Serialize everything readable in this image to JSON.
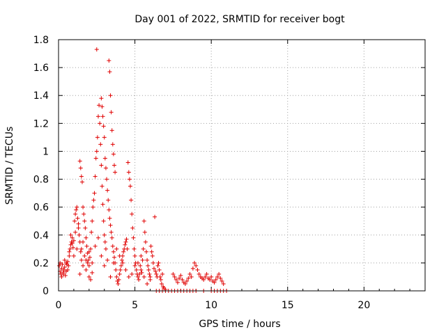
{
  "chart_data": {
    "type": "scatter",
    "title": "Day 001 of 2022, SRMTID for receiver bogt",
    "xlabel": "GPS time / hours",
    "ylabel": "SRMTID / TECUs",
    "xlim": [
      0,
      24
    ],
    "ylim": [
      0,
      1.8
    ],
    "xticks": [
      0,
      5,
      10,
      15,
      20
    ],
    "xtick_labels": [
      "0",
      "5",
      "10",
      "15",
      "20"
    ],
    "yticks": [
      0,
      0.2,
      0.4,
      0.6,
      0.8,
      1.0,
      1.2,
      1.4,
      1.6,
      1.8
    ],
    "ytick_labels": [
      "0",
      "0.2",
      "0.4",
      "0.6",
      "0.8",
      "1",
      "1.2",
      "1.4",
      "1.6",
      "1.8"
    ],
    "grid": true,
    "marker": "+",
    "series_color": "#e00000",
    "series": [
      {
        "name": "SRMTID",
        "points": [
          [
            0.05,
            0.18
          ],
          [
            0.1,
            0.14
          ],
          [
            0.15,
            0.12
          ],
          [
            0.2,
            0.16
          ],
          [
            0.25,
            0.19
          ],
          [
            0.3,
            0.13
          ],
          [
            0.35,
            0.15
          ],
          [
            0.4,
            0.17
          ],
          [
            0.45,
            0.11
          ],
          [
            0.5,
            0.14
          ],
          [
            0.55,
            0.19
          ],
          [
            0.6,
            0.21
          ],
          [
            0.65,
            0.18
          ],
          [
            0.7,
            0.25
          ],
          [
            0.75,
            0.3
          ],
          [
            0.8,
            0.33
          ],
          [
            0.85,
            0.35
          ],
          [
            0.9,
            0.38
          ],
          [
            0.95,
            0.31
          ],
          [
            1.0,
            0.36
          ],
          [
            1.05,
            0.5
          ],
          [
            1.1,
            0.55
          ],
          [
            1.15,
            0.58
          ],
          [
            1.2,
            0.6
          ],
          [
            1.25,
            0.52
          ],
          [
            1.3,
            0.45
          ],
          [
            1.35,
            0.4
          ],
          [
            1.4,
            0.35
          ],
          [
            1.45,
            0.28
          ],
          [
            1.5,
            0.22
          ],
          [
            0.2,
            0.1
          ],
          [
            0.3,
            0.12
          ],
          [
            0.5,
            0.2
          ],
          [
            0.7,
            0.28
          ],
          [
            0.9,
            0.34
          ],
          [
            1.1,
            0.42
          ],
          [
            1.3,
            0.48
          ],
          [
            1.5,
            0.3
          ],
          [
            1.6,
            0.18
          ],
          [
            1.7,
            0.25
          ],
          [
            1.8,
            0.15
          ],
          [
            1.9,
            0.2
          ],
          [
            2.0,
            0.1
          ],
          [
            2.1,
            0.08
          ],
          [
            2.2,
            0.13
          ],
          [
            1.4,
            0.93
          ],
          [
            1.45,
            0.88
          ],
          [
            1.5,
            0.82
          ],
          [
            1.55,
            0.78
          ],
          [
            1.6,
            0.6
          ],
          [
            1.65,
            0.55
          ],
          [
            1.7,
            0.5
          ],
          [
            1.75,
            0.45
          ],
          [
            1.8,
            0.38
          ],
          [
            1.85,
            0.32
          ],
          [
            1.9,
            0.27
          ],
          [
            1.95,
            0.22
          ],
          [
            2.0,
            0.18
          ],
          [
            2.05,
            0.24
          ],
          [
            2.1,
            0.3
          ],
          [
            2.15,
            0.42
          ],
          [
            2.2,
            0.5
          ],
          [
            2.25,
            0.6
          ],
          [
            2.3,
            0.65
          ],
          [
            2.35,
            0.7
          ],
          [
            2.4,
            0.82
          ],
          [
            2.45,
            0.95
          ],
          [
            2.5,
            1.0
          ],
          [
            2.55,
            1.1
          ],
          [
            2.6,
            1.25
          ],
          [
            2.65,
            1.33
          ],
          [
            2.7,
            1.2
          ],
          [
            2.75,
            1.05
          ],
          [
            2.8,
            0.9
          ],
          [
            2.85,
            0.75
          ],
          [
            2.9,
            0.62
          ],
          [
            2.95,
            0.5
          ],
          [
            3.0,
            0.4
          ],
          [
            3.05,
            0.35
          ],
          [
            3.1,
            0.3
          ],
          [
            2.5,
            1.73
          ],
          [
            3.3,
            1.65
          ],
          [
            3.35,
            1.57
          ],
          [
            3.4,
            1.4
          ],
          [
            3.45,
            1.28
          ],
          [
            3.5,
            1.15
          ],
          [
            3.55,
            1.05
          ],
          [
            3.6,
            0.98
          ],
          [
            3.65,
            0.9
          ],
          [
            3.7,
            0.85
          ],
          [
            2.8,
            1.38
          ],
          [
            2.85,
            1.32
          ],
          [
            2.9,
            1.25
          ],
          [
            2.95,
            1.18
          ],
          [
            3.0,
            1.1
          ],
          [
            3.05,
            0.95
          ],
          [
            3.1,
            0.88
          ],
          [
            3.15,
            0.8
          ],
          [
            3.2,
            0.72
          ],
          [
            3.25,
            0.65
          ],
          [
            3.3,
            0.58
          ],
          [
            3.35,
            0.52
          ],
          [
            3.4,
            0.47
          ],
          [
            3.45,
            0.42
          ],
          [
            3.5,
            0.38
          ],
          [
            3.55,
            0.32
          ],
          [
            3.6,
            0.28
          ],
          [
            3.65,
            0.24
          ],
          [
            3.7,
            0.2
          ],
          [
            3.75,
            0.15
          ],
          [
            3.8,
            0.1
          ],
          [
            3.85,
            0.07
          ],
          [
            3.9,
            0.05
          ],
          [
            3.95,
            0.08
          ],
          [
            4.0,
            0.12
          ],
          [
            4.05,
            0.15
          ],
          [
            4.1,
            0.18
          ],
          [
            4.15,
            0.22
          ],
          [
            4.2,
            0.25
          ],
          [
            4.25,
            0.28
          ],
          [
            4.3,
            0.3
          ],
          [
            4.35,
            0.33
          ],
          [
            4.4,
            0.35
          ],
          [
            4.45,
            0.37
          ],
          [
            4.5,
            0.3
          ],
          [
            4.55,
            0.92
          ],
          [
            4.6,
            0.85
          ],
          [
            4.65,
            0.8
          ],
          [
            4.7,
            0.75
          ],
          [
            4.75,
            0.65
          ],
          [
            4.8,
            0.55
          ],
          [
            4.85,
            0.45
          ],
          [
            4.9,
            0.38
          ],
          [
            4.95,
            0.3
          ],
          [
            5.0,
            0.25
          ],
          [
            5.05,
            0.2
          ],
          [
            5.1,
            0.15
          ],
          [
            5.15,
            0.12
          ],
          [
            5.2,
            0.1
          ],
          [
            5.25,
            0.08
          ],
          [
            5.3,
            0.12
          ],
          [
            5.35,
            0.18
          ],
          [
            5.4,
            0.15
          ],
          [
            5.45,
            0.13
          ],
          [
            5.5,
            0.22
          ],
          [
            5.55,
            0.3
          ],
          [
            5.6,
            0.5
          ],
          [
            5.65,
            0.42
          ],
          [
            5.7,
            0.35
          ],
          [
            5.75,
            0.28
          ],
          [
            5.8,
            0.22
          ],
          [
            5.85,
            0.18
          ],
          [
            5.9,
            0.15
          ],
          [
            5.95,
            0.12
          ],
          [
            6.0,
            0.1
          ],
          [
            6.05,
            0.32
          ],
          [
            6.1,
            0.28
          ],
          [
            6.15,
            0.25
          ],
          [
            6.2,
            0.2
          ],
          [
            6.25,
            0.16
          ],
          [
            6.3,
            0.53
          ],
          [
            6.35,
            0.14
          ],
          [
            6.4,
            0.12
          ],
          [
            6.45,
            0.1
          ],
          [
            6.5,
            0.18
          ],
          [
            6.55,
            0.2
          ],
          [
            6.6,
            0.15
          ],
          [
            6.65,
            0.1
          ],
          [
            6.7,
            0.08
          ],
          [
            6.75,
            0.05
          ],
          [
            6.8,
            0.12
          ],
          [
            6.85,
            0.03
          ],
          [
            6.9,
            0.02
          ],
          [
            7.0,
            0.01
          ],
          [
            0.1,
            0.2
          ],
          [
            0.4,
            0.22
          ],
          [
            0.6,
            0.15
          ],
          [
            0.8,
            0.4
          ],
          [
            1.0,
            0.25
          ],
          [
            1.2,
            0.3
          ],
          [
            1.4,
            0.12
          ],
          [
            1.6,
            0.35
          ],
          [
            1.8,
            0.22
          ],
          [
            2.0,
            0.28
          ],
          [
            2.2,
            0.2
          ],
          [
            2.4,
            0.32
          ],
          [
            2.6,
            0.38
          ],
          [
            2.8,
            0.25
          ],
          [
            3.0,
            0.18
          ],
          [
            3.2,
            0.22
          ],
          [
            3.4,
            0.1
          ],
          [
            3.6,
            0.2
          ],
          [
            3.8,
            0.3
          ],
          [
            4.0,
            0.25
          ],
          [
            4.2,
            0.2
          ],
          [
            4.4,
            0.15
          ],
          [
            4.6,
            0.1
          ],
          [
            4.8,
            0.12
          ],
          [
            5.0,
            0.18
          ],
          [
            5.2,
            0.2
          ],
          [
            5.4,
            0.25
          ],
          [
            5.6,
            0.1
          ],
          [
            5.8,
            0.05
          ],
          [
            6.0,
            0.08
          ],
          [
            7.5,
            0.12
          ],
          [
            7.6,
            0.1
          ],
          [
            7.7,
            0.08
          ],
          [
            7.8,
            0.06
          ],
          [
            7.9,
            0.09
          ],
          [
            8.0,
            0.11
          ],
          [
            8.1,
            0.08
          ],
          [
            8.2,
            0.06
          ],
          [
            8.3,
            0.05
          ],
          [
            8.4,
            0.07
          ],
          [
            8.5,
            0.09
          ],
          [
            8.6,
            0.12
          ],
          [
            8.7,
            0.1
          ],
          [
            8.8,
            0.16
          ],
          [
            8.9,
            0.2
          ],
          [
            9.0,
            0.18
          ],
          [
            9.1,
            0.15
          ],
          [
            9.2,
            0.12
          ],
          [
            9.3,
            0.1
          ],
          [
            9.4,
            0.09
          ],
          [
            9.5,
            0.08
          ],
          [
            9.6,
            0.1
          ],
          [
            9.7,
            0.12
          ],
          [
            9.8,
            0.09
          ],
          [
            9.9,
            0.08
          ],
          [
            10.0,
            0.1
          ],
          [
            10.1,
            0.07
          ],
          [
            10.2,
            0.06
          ],
          [
            10.3,
            0.08
          ],
          [
            10.4,
            0.1
          ],
          [
            10.5,
            0.12
          ],
          [
            10.6,
            0.09
          ],
          [
            10.7,
            0.07
          ],
          [
            10.8,
            0.05
          ],
          [
            6.4,
            0.0
          ],
          [
            6.6,
            0.0
          ],
          [
            6.8,
            0.0
          ],
          [
            7.0,
            0.0
          ],
          [
            7.2,
            0.0
          ],
          [
            7.4,
            0.0
          ],
          [
            7.6,
            0.0
          ],
          [
            7.8,
            0.0
          ],
          [
            8.0,
            0.0
          ],
          [
            8.2,
            0.0
          ],
          [
            8.4,
            0.0
          ],
          [
            8.6,
            0.0
          ],
          [
            8.8,
            0.0
          ],
          [
            9.0,
            0.0
          ],
          [
            9.5,
            0.0
          ],
          [
            10.0,
            0.0
          ],
          [
            10.2,
            0.0
          ],
          [
            10.4,
            0.0
          ],
          [
            10.6,
            0.0
          ],
          [
            10.8,
            0.0
          ],
          [
            11.0,
            0.0
          ]
        ]
      }
    ]
  }
}
